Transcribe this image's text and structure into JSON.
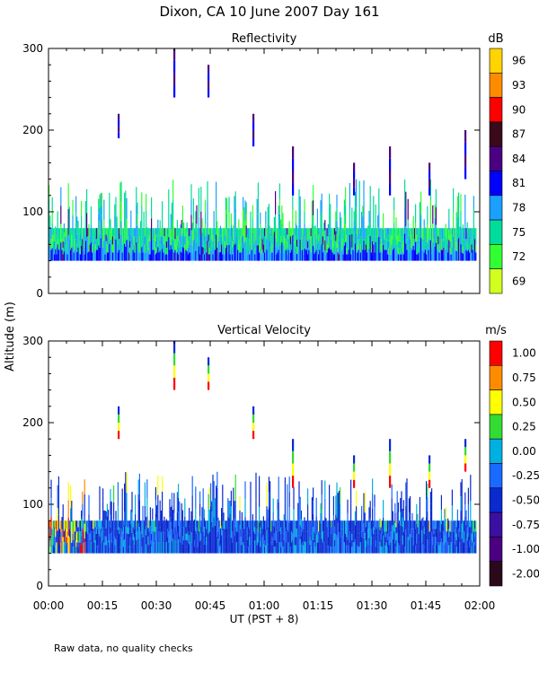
{
  "title": "Dixon, CA 10 June 2007  Day 161",
  "footnote": "Raw data, no quality checks",
  "chart_data": [
    {
      "type": "heatmap",
      "title": "Reflectivity",
      "xlabel": "UT  (PST + 8)",
      "ylabel": "Altitude (m)",
      "x_ticks": [
        "00:00",
        "00:15",
        "00:30",
        "00:45",
        "01:00",
        "01:15",
        "01:30",
        "01:45",
        "02:00"
      ],
      "x_range_minutes": [
        0,
        120
      ],
      "y_ticks": [
        "0",
        "100",
        "200",
        "300"
      ],
      "ylim": [
        0,
        300
      ],
      "colorbar_unit": "dB",
      "colorbar_labels": [
        "96",
        "93",
        "90",
        "87",
        "84",
        "81",
        "78",
        "75",
        "72",
        "69"
      ],
      "colorbar_colors": [
        "#ffd400",
        "#ff8c00",
        "#ff0000",
        "#3a0a1a",
        "#4b0082",
        "#0000ff",
        "#1aa0ff",
        "#00dc9b",
        "#32ff32",
        "#d2ff1e"
      ],
      "echo_layer_m": [
        40,
        80
      ],
      "echo_tops_m": [
        80,
        140
      ],
      "isolated_returns": [
        {
          "minutes": 19.5,
          "bottom_m": 190,
          "top_m": 220
        },
        {
          "minutes": 35,
          "bottom_m": 240,
          "top_m": 300
        },
        {
          "minutes": 44.5,
          "bottom_m": 240,
          "top_m": 280
        },
        {
          "minutes": 57,
          "bottom_m": 180,
          "top_m": 220
        },
        {
          "minutes": 68,
          "bottom_m": 120,
          "top_m": 180
        },
        {
          "minutes": 85,
          "bottom_m": 120,
          "top_m": 160
        },
        {
          "minutes": 95,
          "bottom_m": 120,
          "top_m": 180
        },
        {
          "minutes": 106,
          "bottom_m": 120,
          "top_m": 160
        },
        {
          "minutes": 116,
          "bottom_m": 140,
          "top_m": 200
        }
      ]
    },
    {
      "type": "heatmap",
      "title": "Vertical Velocity",
      "xlabel": "UT  (PST + 8)",
      "ylabel": "Altitude (m)",
      "x_ticks": [
        "00:00",
        "00:15",
        "00:30",
        "00:45",
        "01:00",
        "01:15",
        "01:30",
        "01:45",
        "02:00"
      ],
      "x_range_minutes": [
        0,
        120
      ],
      "y_ticks": [
        "0",
        "100",
        "200",
        "300"
      ],
      "ylim": [
        0,
        300
      ],
      "colorbar_unit": "m/s",
      "colorbar_labels": [
        "1.00",
        "0.75",
        "0.50",
        "0.25",
        "0.00",
        "-0.25",
        "-0.50",
        "-0.75",
        "-1.00",
        "-2.00"
      ],
      "colorbar_colors": [
        "#ff0000",
        "#ff8c00",
        "#ffff00",
        "#32dc32",
        "#00b0e0",
        "#1a6aff",
        "#0a2ad0",
        "#3a10a0",
        "#4b0082",
        "#2a0a1a"
      ],
      "echo_layer_m": [
        40,
        80
      ],
      "echo_tops_m": [
        80,
        140
      ],
      "isolated_returns": [
        {
          "minutes": 19.5,
          "bottom_m": 180,
          "top_m": 220
        },
        {
          "minutes": 35,
          "bottom_m": 240,
          "top_m": 300
        },
        {
          "minutes": 44.5,
          "bottom_m": 240,
          "top_m": 280
        },
        {
          "minutes": 57,
          "bottom_m": 180,
          "top_m": 220
        },
        {
          "minutes": 68,
          "bottom_m": 120,
          "top_m": 180
        },
        {
          "minutes": 85,
          "bottom_m": 120,
          "top_m": 160
        },
        {
          "minutes": 95,
          "bottom_m": 120,
          "top_m": 180
        },
        {
          "minutes": 106,
          "bottom_m": 120,
          "top_m": 160
        },
        {
          "minutes": 116,
          "bottom_m": 140,
          "top_m": 180
        }
      ]
    }
  ]
}
